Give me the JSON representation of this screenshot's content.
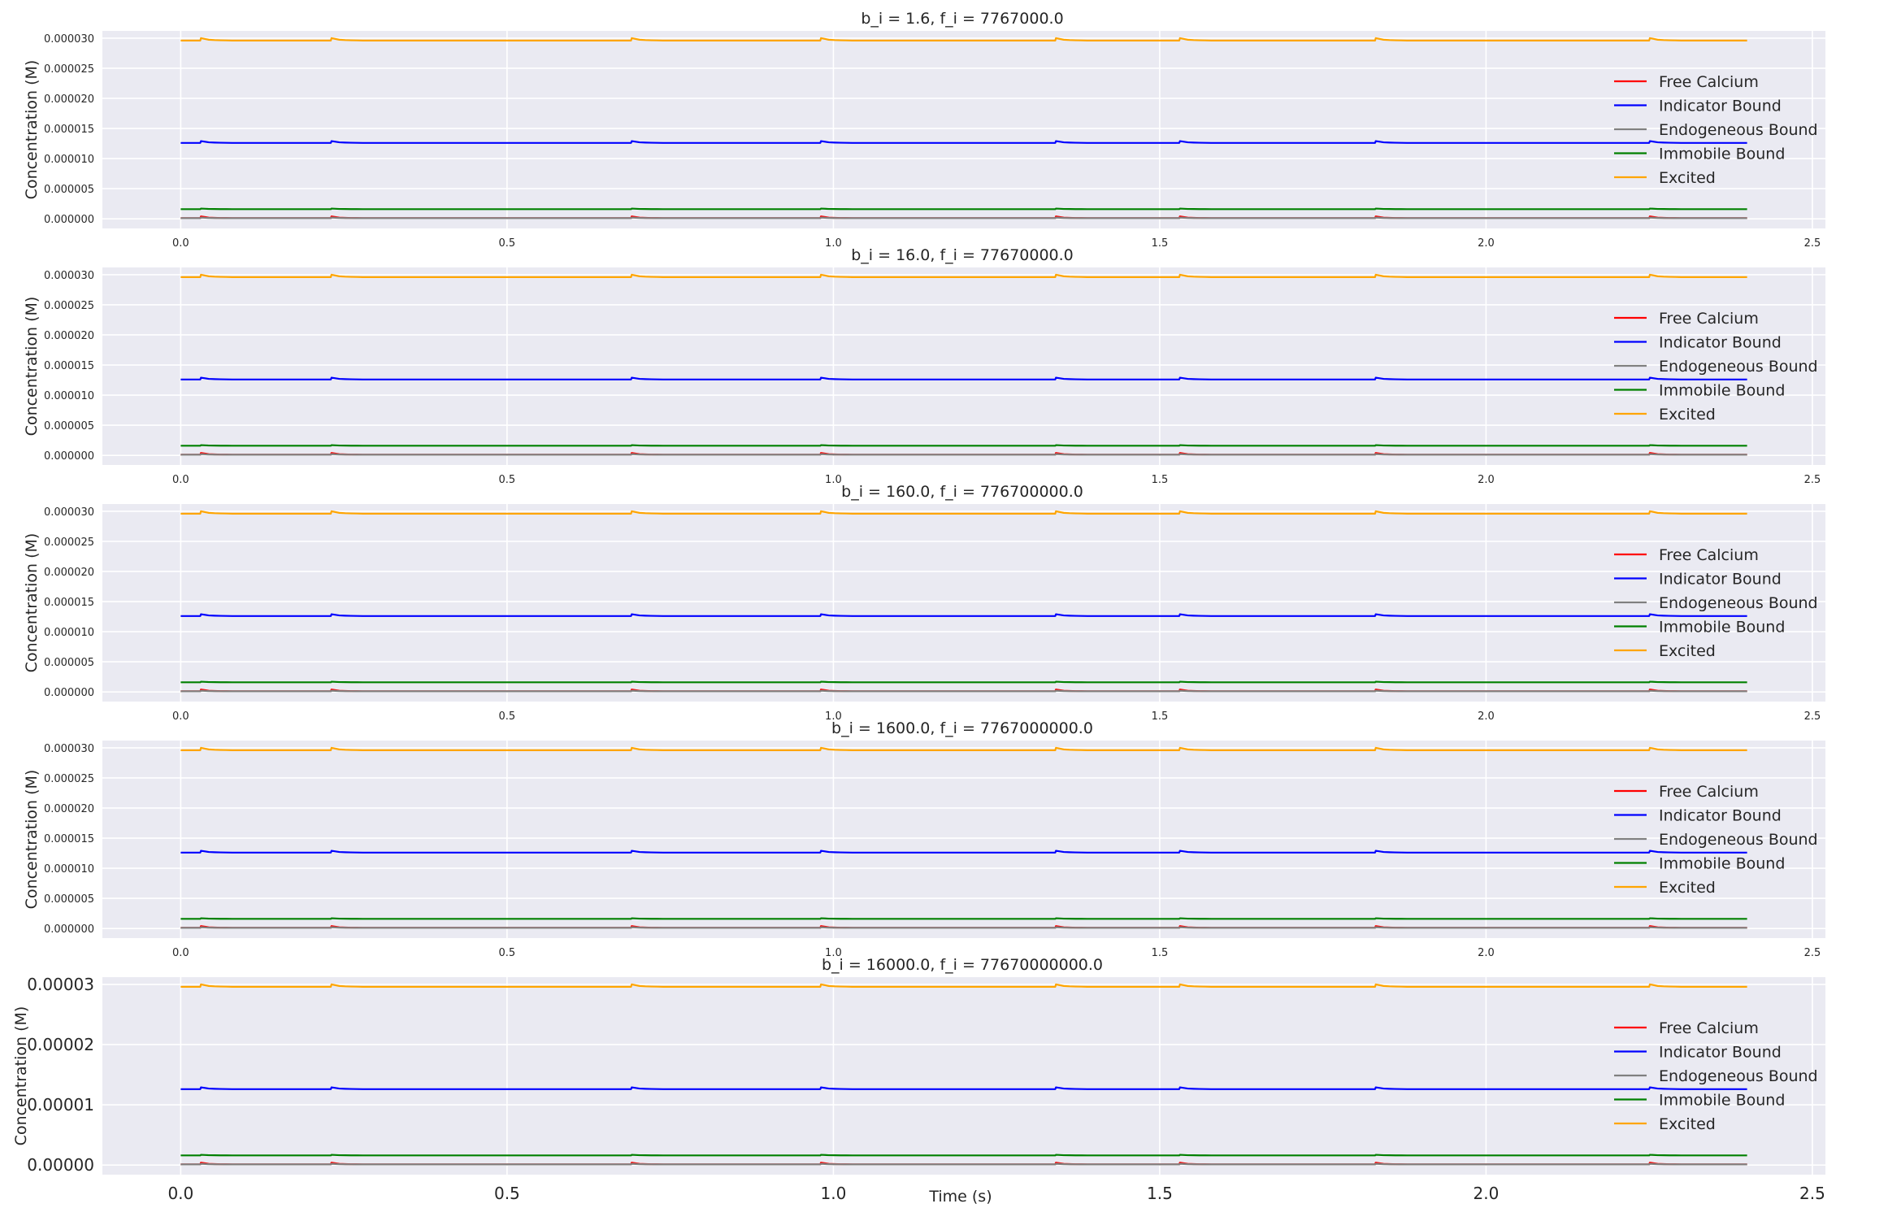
{
  "chart_data": {
    "type": "line",
    "shared_xlabel": "Time (s)",
    "ylabel": "Concentration (M)",
    "xlim": [
      -0.12,
      2.52
    ],
    "xticks": [
      "0.0",
      "0.5",
      "1.0",
      "1.5",
      "2.0",
      "2.5"
    ],
    "xtick_values": [
      0.0,
      0.5,
      1.0,
      1.5,
      2.0,
      2.5
    ],
    "ylim": [
      -1.6e-06,
      3.12e-05
    ],
    "grid": true,
    "legend_placement": "center-right",
    "x_range": [
      0.0,
      2.4
    ],
    "spike_times": [
      0.03,
      0.23,
      0.69,
      0.98,
      0.99,
      1.34,
      1.53,
      1.83,
      2.25,
      2.26
    ],
    "series": [
      {
        "name": "Free Calcium",
        "color": "#ff0000",
        "baseline": 1e-07,
        "spike": 3e-07
      },
      {
        "name": "Indicator Bound",
        "color": "#0000ff",
        "baseline": 1.26e-05,
        "spike": 3e-07
      },
      {
        "name": "Endogeneous Bound",
        "color": "#808080",
        "baseline": 1e-07,
        "spike": 1e-07
      },
      {
        "name": "Immobile Bound",
        "color": "#008000",
        "baseline": 1.6e-06,
        "spike": 1e-07
      },
      {
        "name": "Excited",
        "color": "#ffa500",
        "baseline": 2.96e-05,
        "spike": 4e-07
      }
    ],
    "panels": [
      {
        "title": "b_i = 1.6, f_i = 7767000.0",
        "yticks": [
          "0.000000",
          "0.000005",
          "0.000010",
          "0.000015",
          "0.000020",
          "0.000025",
          "0.000030"
        ],
        "ytick_values": [
          0,
          5e-06,
          1e-05,
          1.5e-05,
          2e-05,
          2.5e-05,
          3e-05
        ]
      },
      {
        "title": "b_i = 16.0, f_i = 77670000.0",
        "yticks": [
          "0.000000",
          "0.000005",
          "0.000010",
          "0.000015",
          "0.000020",
          "0.000025",
          "0.000030"
        ],
        "ytick_values": [
          0,
          5e-06,
          1e-05,
          1.5e-05,
          2e-05,
          2.5e-05,
          3e-05
        ]
      },
      {
        "title": "b_i = 160.0, f_i = 776700000.0",
        "yticks": [
          "0.000000",
          "0.000005",
          "0.000010",
          "0.000015",
          "0.000020",
          "0.000025",
          "0.000030"
        ],
        "ytick_values": [
          0,
          5e-06,
          1e-05,
          1.5e-05,
          2e-05,
          2.5e-05,
          3e-05
        ]
      },
      {
        "title": "b_i = 1600.0, f_i = 7767000000.0",
        "yticks": [
          "0.000000",
          "0.000005",
          "0.000010",
          "0.000015",
          "0.000020",
          "0.000025",
          "0.000030"
        ],
        "ytick_values": [
          0,
          5e-06,
          1e-05,
          1.5e-05,
          2e-05,
          2.5e-05,
          3e-05
        ]
      },
      {
        "title": "b_i = 16000.0, f_i = 77670000000.0",
        "yticks": [
          "0.00000",
          "0.00001",
          "0.00002",
          "0.00003"
        ],
        "ytick_values": [
          0,
          1e-05,
          2e-05,
          3e-05
        ]
      }
    ]
  }
}
